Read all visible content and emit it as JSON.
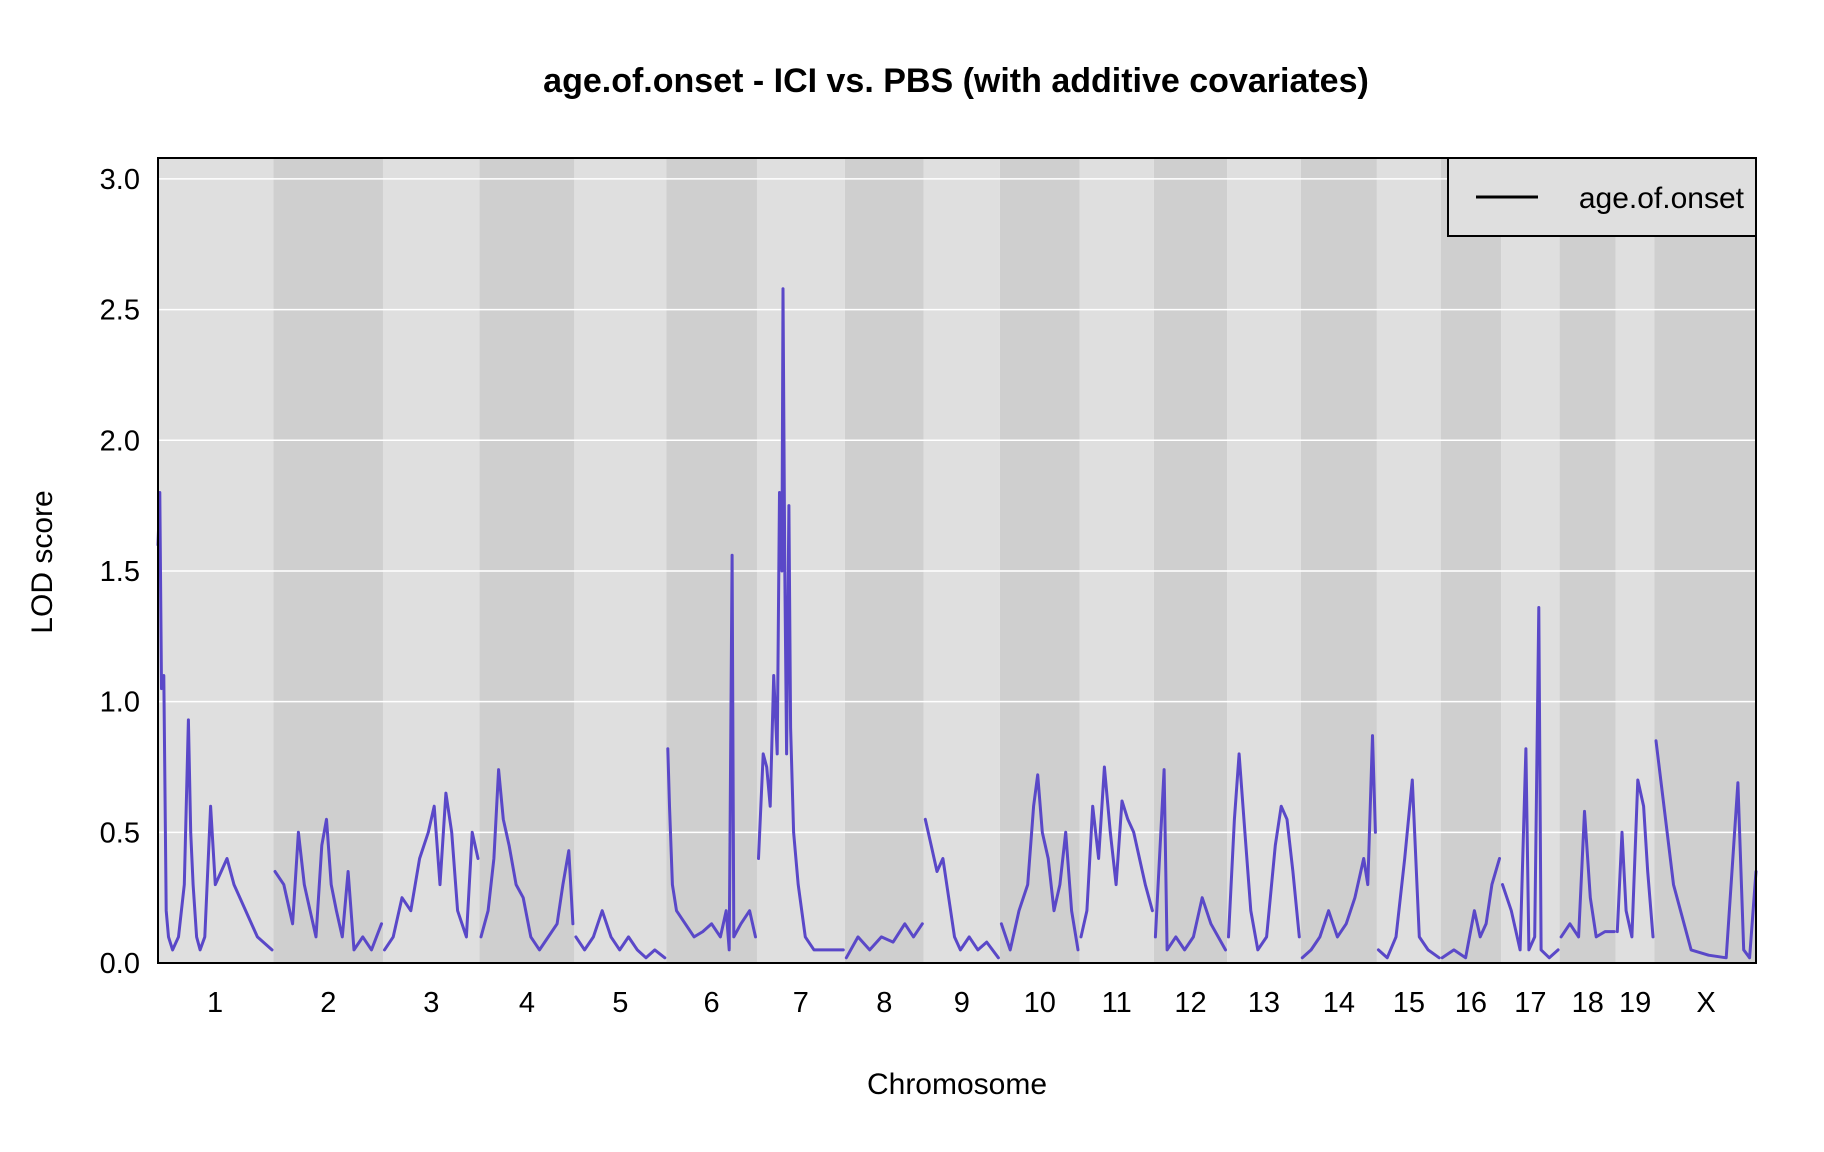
{
  "chart_data": {
    "type": "line",
    "title": "age.of.onset - ICI vs. PBS (with additive covariates)",
    "xlabel": "Chromosome",
    "ylabel": "LOD score",
    "ylim": [
      0,
      3.08
    ],
    "yticks": [
      "0.0",
      "0.5",
      "1.0",
      "1.5",
      "2.0",
      "2.5",
      "3.0"
    ],
    "ytick_values": [
      0,
      0.5,
      1.0,
      1.5,
      2.0,
      2.5,
      3.0
    ],
    "grid": true,
    "legend_position": "top-right",
    "colors": {
      "line": "#5a48c8",
      "band_light": "#dfdfdf",
      "band_dark": "#cfcfcf",
      "grid": "#ffffff",
      "legend_swatch": "#000000"
    },
    "series": [
      {
        "name": "age.of.onset"
      }
    ],
    "chromosomes": [
      {
        "label": "1",
        "length": 195
      },
      {
        "label": "2",
        "length": 182
      },
      {
        "label": "3",
        "length": 160
      },
      {
        "label": "4",
        "length": 157
      },
      {
        "label": "5",
        "length": 152
      },
      {
        "label": "6",
        "length": 150
      },
      {
        "label": "7",
        "length": 145
      },
      {
        "label": "8",
        "length": 130
      },
      {
        "label": "9",
        "length": 125
      },
      {
        "label": "10",
        "length": 131
      },
      {
        "label": "11",
        "length": 122
      },
      {
        "label": "12",
        "length": 120
      },
      {
        "label": "13",
        "length": 121
      },
      {
        "label": "14",
        "length": 125
      },
      {
        "label": "15",
        "length": 104
      },
      {
        "label": "16",
        "length": 98
      },
      {
        "label": "17",
        "length": 95
      },
      {
        "label": "18",
        "length": 91
      },
      {
        "label": "19",
        "length": 61
      },
      {
        "label": "X",
        "length": 171
      }
    ],
    "lod_profiles": [
      [
        [
          0,
          1.6
        ],
        [
          3,
          1.8
        ],
        [
          6,
          1.05
        ],
        [
          10,
          1.1
        ],
        [
          14,
          0.2
        ],
        [
          18,
          0.1
        ],
        [
          25,
          0.05
        ],
        [
          35,
          0.1
        ],
        [
          45,
          0.3
        ],
        [
          52,
          0.93
        ],
        [
          56,
          0.5
        ],
        [
          60,
          0.3
        ],
        [
          66,
          0.1
        ],
        [
          72,
          0.05
        ],
        [
          80,
          0.1
        ],
        [
          90,
          0.6
        ],
        [
          98,
          0.3
        ],
        [
          108,
          0.35
        ],
        [
          118,
          0.4
        ],
        [
          130,
          0.3
        ],
        [
          150,
          0.2
        ],
        [
          170,
          0.1
        ],
        [
          195,
          0.05
        ]
      ],
      [
        [
          0,
          0.35
        ],
        [
          15,
          0.3
        ],
        [
          30,
          0.15
        ],
        [
          40,
          0.5
        ],
        [
          50,
          0.3
        ],
        [
          60,
          0.2
        ],
        [
          70,
          0.1
        ],
        [
          80,
          0.45
        ],
        [
          88,
          0.55
        ],
        [
          96,
          0.3
        ],
        [
          105,
          0.2
        ],
        [
          115,
          0.1
        ],
        [
          125,
          0.35
        ],
        [
          135,
          0.05
        ],
        [
          150,
          0.1
        ],
        [
          165,
          0.05
        ],
        [
          182,
          0.15
        ]
      ],
      [
        [
          0,
          0.05
        ],
        [
          15,
          0.1
        ],
        [
          30,
          0.25
        ],
        [
          45,
          0.2
        ],
        [
          60,
          0.4
        ],
        [
          75,
          0.5
        ],
        [
          85,
          0.6
        ],
        [
          95,
          0.3
        ],
        [
          105,
          0.65
        ],
        [
          115,
          0.5
        ],
        [
          125,
          0.2
        ],
        [
          140,
          0.1
        ],
        [
          150,
          0.5
        ],
        [
          160,
          0.4
        ]
      ],
      [
        [
          0,
          0.1
        ],
        [
          12,
          0.2
        ],
        [
          22,
          0.4
        ],
        [
          30,
          0.74
        ],
        [
          38,
          0.55
        ],
        [
          48,
          0.45
        ],
        [
          60,
          0.3
        ],
        [
          72,
          0.25
        ],
        [
          85,
          0.1
        ],
        [
          100,
          0.05
        ],
        [
          115,
          0.1
        ],
        [
          130,
          0.15
        ],
        [
          140,
          0.3
        ],
        [
          150,
          0.43
        ],
        [
          157,
          0.15
        ]
      ],
      [
        [
          0,
          0.1
        ],
        [
          15,
          0.05
        ],
        [
          30,
          0.1
        ],
        [
          45,
          0.2
        ],
        [
          60,
          0.1
        ],
        [
          75,
          0.05
        ],
        [
          90,
          0.1
        ],
        [
          105,
          0.05
        ],
        [
          120,
          0.02
        ],
        [
          135,
          0.05
        ],
        [
          152,
          0.02
        ]
      ],
      [
        [
          0,
          0.82
        ],
        [
          3,
          0.6
        ],
        [
          8,
          0.3
        ],
        [
          15,
          0.2
        ],
        [
          30,
          0.15
        ],
        [
          45,
          0.1
        ],
        [
          60,
          0.12
        ],
        [
          75,
          0.15
        ],
        [
          90,
          0.1
        ],
        [
          100,
          0.2
        ],
        [
          105,
          0.05
        ],
        [
          110,
          1.56
        ],
        [
          113,
          0.1
        ],
        [
          125,
          0.15
        ],
        [
          140,
          0.2
        ],
        [
          150,
          0.1
        ]
      ],
      [
        [
          0,
          0.4
        ],
        [
          8,
          0.8
        ],
        [
          14,
          0.75
        ],
        [
          20,
          0.6
        ],
        [
          26,
          1.1
        ],
        [
          32,
          0.8
        ],
        [
          36,
          1.8
        ],
        [
          40,
          1.5
        ],
        [
          42,
          2.58
        ],
        [
          45,
          1.5
        ],
        [
          48,
          0.8
        ],
        [
          52,
          1.75
        ],
        [
          55,
          0.9
        ],
        [
          60,
          0.5
        ],
        [
          68,
          0.3
        ],
        [
          80,
          0.1
        ],
        [
          95,
          0.05
        ],
        [
          110,
          0.05
        ],
        [
          130,
          0.05
        ],
        [
          145,
          0.05
        ]
      ],
      [
        [
          0,
          0.02
        ],
        [
          20,
          0.1
        ],
        [
          40,
          0.05
        ],
        [
          60,
          0.1
        ],
        [
          80,
          0.08
        ],
        [
          100,
          0.15
        ],
        [
          115,
          0.1
        ],
        [
          130,
          0.15
        ]
      ],
      [
        [
          0,
          0.55
        ],
        [
          10,
          0.45
        ],
        [
          20,
          0.35
        ],
        [
          30,
          0.4
        ],
        [
          40,
          0.25
        ],
        [
          50,
          0.1
        ],
        [
          60,
          0.05
        ],
        [
          75,
          0.1
        ],
        [
          90,
          0.05
        ],
        [
          105,
          0.08
        ],
        [
          125,
          0.02
        ]
      ],
      [
        [
          0,
          0.15
        ],
        [
          15,
          0.05
        ],
        [
          30,
          0.2
        ],
        [
          45,
          0.3
        ],
        [
          55,
          0.6
        ],
        [
          62,
          0.72
        ],
        [
          70,
          0.5
        ],
        [
          80,
          0.4
        ],
        [
          90,
          0.2
        ],
        [
          100,
          0.3
        ],
        [
          110,
          0.5
        ],
        [
          120,
          0.2
        ],
        [
          131,
          0.05
        ]
      ],
      [
        [
          0,
          0.1
        ],
        [
          10,
          0.2
        ],
        [
          20,
          0.6
        ],
        [
          30,
          0.4
        ],
        [
          40,
          0.75
        ],
        [
          50,
          0.5
        ],
        [
          60,
          0.3
        ],
        [
          70,
          0.62
        ],
        [
          80,
          0.55
        ],
        [
          90,
          0.5
        ],
        [
          100,
          0.4
        ],
        [
          110,
          0.3
        ],
        [
          122,
          0.2
        ]
      ],
      [
        [
          0,
          0.1
        ],
        [
          15,
          0.74
        ],
        [
          20,
          0.05
        ],
        [
          35,
          0.1
        ],
        [
          50,
          0.05
        ],
        [
          65,
          0.1
        ],
        [
          80,
          0.25
        ],
        [
          95,
          0.15
        ],
        [
          120,
          0.05
        ]
      ],
      [
        [
          0,
          0.1
        ],
        [
          10,
          0.55
        ],
        [
          18,
          0.8
        ],
        [
          28,
          0.5
        ],
        [
          38,
          0.2
        ],
        [
          50,
          0.05
        ],
        [
          65,
          0.1
        ],
        [
          80,
          0.45
        ],
        [
          90,
          0.6
        ],
        [
          100,
          0.55
        ],
        [
          110,
          0.35
        ],
        [
          121,
          0.1
        ]
      ],
      [
        [
          0,
          0.02
        ],
        [
          15,
          0.05
        ],
        [
          30,
          0.1
        ],
        [
          45,
          0.2
        ],
        [
          60,
          0.1
        ],
        [
          75,
          0.15
        ],
        [
          90,
          0.25
        ],
        [
          105,
          0.4
        ],
        [
          112,
          0.3
        ],
        [
          120,
          0.87
        ],
        [
          125,
          0.5
        ]
      ],
      [
        [
          0,
          0.05
        ],
        [
          15,
          0.02
        ],
        [
          30,
          0.1
        ],
        [
          45,
          0.4
        ],
        [
          58,
          0.7
        ],
        [
          70,
          0.1
        ],
        [
          85,
          0.05
        ],
        [
          104,
          0.02
        ]
      ],
      [
        [
          0,
          0.02
        ],
        [
          20,
          0.05
        ],
        [
          40,
          0.02
        ],
        [
          55,
          0.2
        ],
        [
          65,
          0.1
        ],
        [
          75,
          0.15
        ],
        [
          85,
          0.3
        ],
        [
          98,
          0.4
        ]
      ],
      [
        [
          0,
          0.3
        ],
        [
          15,
          0.2
        ],
        [
          30,
          0.05
        ],
        [
          40,
          0.82
        ],
        [
          45,
          0.05
        ],
        [
          55,
          0.1
        ],
        [
          62,
          1.36
        ],
        [
          66,
          0.05
        ],
        [
          80,
          0.02
        ],
        [
          95,
          0.05
        ]
      ],
      [
        [
          0,
          0.1
        ],
        [
          15,
          0.15
        ],
        [
          30,
          0.1
        ],
        [
          40,
          0.58
        ],
        [
          50,
          0.25
        ],
        [
          60,
          0.1
        ],
        [
          75,
          0.12
        ],
        [
          91,
          0.12
        ]
      ],
      [
        [
          0,
          0.12
        ],
        [
          8,
          0.5
        ],
        [
          15,
          0.2
        ],
        [
          25,
          0.1
        ],
        [
          35,
          0.7
        ],
        [
          45,
          0.6
        ],
        [
          52,
          0.35
        ],
        [
          61,
          0.1
        ]
      ],
      [
        [
          0,
          0.85
        ],
        [
          30,
          0.3
        ],
        [
          60,
          0.05
        ],
        [
          90,
          0.03
        ],
        [
          120,
          0.02
        ],
        [
          140,
          0.69
        ],
        [
          150,
          0.05
        ],
        [
          160,
          0.02
        ],
        [
          171,
          0.35
        ]
      ]
    ]
  }
}
